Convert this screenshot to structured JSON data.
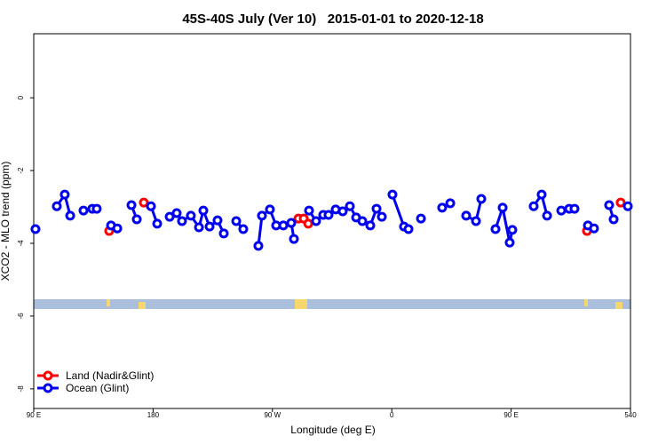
{
  "chart_data": {
    "type": "line",
    "title": "45S-40S July (Ver 10)   2015-01-01 to 2020-12-18",
    "x_label": "Longitude (deg E)",
    "y_label": "XCO2 - MLO trend (ppm)",
    "xlim": [
      90,
      540
    ],
    "xticks": [
      {
        "value": 90,
        "label": "90 E"
      },
      180,
      {
        "value": 270,
        "label": "90 W"
      },
      {
        "value": 360,
        "label": "0"
      },
      {
        "value": 450,
        "label": "90 E"
      },
      540
    ],
    "ylim": [
      -8.54,
      1.76
    ],
    "yticks": [
      0,
      -2,
      -4,
      -6,
      -8
    ],
    "legend": "bottomleft",
    "series": [
      {
        "name": "Land (Nadir&Glint)",
        "color": "#ff0000",
        "x": [
          146.9,
          null,
          173.0,
          null,
          289.6,
          293.6,
          297.0,
          null,
          507.2,
          null,
          532.6
        ],
        "values": [
          -3.66,
          null,
          -2.88,
          null,
          -3.32,
          -3.32,
          -3.46,
          null,
          -3.66,
          null,
          -2.88
        ]
      },
      {
        "name": "Ocean (Glint)",
        "color": "#0000ee",
        "x": [
          91.3,
          null,
          107.4,
          113.4,
          117.5,
          null,
          127.5,
          null,
          134.2,
          137.5,
          null,
          148.3,
          153.0,
          null,
          163.7,
          167.7,
          null,
          178.4,
          183.1,
          null,
          192.5,
          197.8,
          201.8,
          208.5,
          214.6,
          217.9,
          222.6,
          228.6,
          233.3,
          null,
          242.7,
          248.0,
          null,
          259.4,
          262.1,
          268.1,
          272.8,
          278.2,
          284.2,
          286.2,
          null,
          297.6,
          302.9,
          308.3,
          312.3,
          317.7,
          323.0,
          328.4,
          333.1,
          337.8,
          343.8,
          348.5,
          352.5,
          null,
          360.5,
          369.2,
          372.6,
          null,
          382.0,
          null,
          398.0,
          404.1,
          null,
          416.1,
          423.5,
          427.5,
          null,
          438.2,
          443.6,
          448.9,
          450.9,
          null,
          467.0,
          473.0,
          477.1,
          null,
          487.8,
          null,
          493.8,
          497.8,
          null,
          507.9,
          512.5,
          null,
          523.9,
          527.3,
          null,
          538.0
        ],
        "values": [
          -3.61,
          null,
          -2.98,
          -2.66,
          -3.24,
          null,
          -3.1,
          null,
          -3.05,
          -3.05,
          null,
          -3.51,
          -3.59,
          null,
          -2.95,
          -3.34,
          null,
          -2.98,
          -3.46,
          null,
          -3.27,
          -3.17,
          -3.39,
          -3.24,
          -3.56,
          -3.1,
          -3.54,
          -3.37,
          -3.73,
          null,
          -3.39,
          -3.61,
          null,
          -4.07,
          -3.24,
          -3.07,
          -3.51,
          -3.51,
          -3.44,
          -3.88,
          null,
          -3.1,
          -3.39,
          -3.22,
          -3.22,
          -3.07,
          -3.12,
          -2.98,
          -3.29,
          -3.39,
          -3.51,
          -3.05,
          -3.27,
          null,
          -2.66,
          -3.54,
          -3.61,
          null,
          -3.32,
          null,
          -3.02,
          -2.9,
          null,
          -3.24,
          -3.39,
          -2.78,
          null,
          -3.61,
          -3.02,
          -3.98,
          -3.63,
          null,
          -2.98,
          -2.66,
          -3.24,
          null,
          -3.1,
          null,
          -3.05,
          -3.05,
          null,
          -3.51,
          -3.59,
          null,
          -2.95,
          -3.34,
          null,
          -2.98
        ]
      }
    ]
  }
}
